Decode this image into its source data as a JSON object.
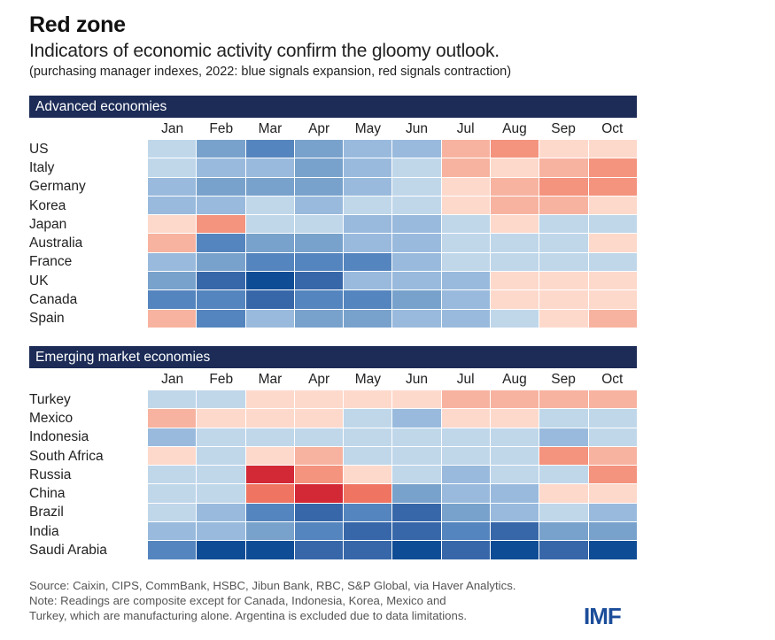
{
  "chart_data": {
    "type": "heatmap",
    "title": "Red zone",
    "subtitle": "Indicators of economic activity confirm the gloomy outlook.",
    "note": "(purchasing manager indexes, 2022: blue signals expansion, red signals contraction)",
    "scale": {
      "description": "Ordinal shading levels: negative = contraction (red), positive = expansion (blue)",
      "colors": {
        "-4": "#d32836",
        "-3": "#f07462",
        "-2": "#f4937e",
        "-1": "#f7b3a0",
        "0": "#fdd9cc",
        "1": "#c0d7ea",
        "2": "#99badd",
        "3": "#78a2cc",
        "4": "#5585be",
        "5": "#3767a9",
        "6": "#0f4c96"
      }
    },
    "months": [
      "Jan",
      "Feb",
      "Mar",
      "Apr",
      "May",
      "Jun",
      "Jul",
      "Aug",
      "Sep",
      "Oct"
    ],
    "panels": [
      {
        "name": "Advanced economies",
        "rows": [
          {
            "country": "US",
            "values": [
              1,
              3,
              4,
              3,
              2,
              2,
              -1,
              -2,
              0,
              0
            ]
          },
          {
            "country": "Italy",
            "values": [
              1,
              2,
              2,
              3,
              2,
              1,
              -1,
              0,
              -1,
              -2
            ]
          },
          {
            "country": "Germany",
            "values": [
              2,
              3,
              3,
              3,
              2,
              1,
              0,
              -1,
              -2,
              -2
            ]
          },
          {
            "country": "Korea",
            "values": [
              2,
              2,
              1,
              2,
              1,
              1,
              0,
              -1,
              -1,
              0
            ]
          },
          {
            "country": "Japan",
            "values": [
              0,
              -2,
              1,
              1,
              2,
              2,
              1,
              0,
              1,
              1
            ]
          },
          {
            "country": "Australia",
            "values": [
              -1,
              4,
              3,
              3,
              2,
              2,
              1,
              1,
              1,
              0
            ]
          },
          {
            "country": "France",
            "values": [
              2,
              3,
              4,
              4,
              4,
              2,
              1,
              1,
              1,
              1
            ]
          },
          {
            "country": "UK",
            "values": [
              3,
              5,
              6,
              5,
              2,
              2,
              2,
              0,
              0,
              0
            ]
          },
          {
            "country": "Canada",
            "values": [
              4,
              4,
              5,
              4,
              4,
              3,
              2,
              0,
              0,
              0
            ]
          },
          {
            "country": "Spain",
            "values": [
              -1,
              4,
              2,
              3,
              3,
              2,
              2,
              1,
              0,
              -1
            ]
          }
        ]
      },
      {
        "name": "Emerging market economies",
        "rows": [
          {
            "country": "Turkey",
            "values": [
              1,
              1,
              0,
              0,
              0,
              0,
              -1,
              -1,
              -1,
              -1
            ]
          },
          {
            "country": "Mexico",
            "values": [
              -1,
              0,
              0,
              0,
              1,
              2,
              0,
              0,
              1,
              1
            ]
          },
          {
            "country": "Indonesia",
            "values": [
              2,
              1,
              1,
              1,
              1,
              1,
              1,
              1,
              2,
              1
            ]
          },
          {
            "country": "South Africa",
            "values": [
              0,
              1,
              0,
              -1,
              1,
              1,
              1,
              1,
              -2,
              -1
            ]
          },
          {
            "country": "Russia",
            "values": [
              1,
              1,
              -4,
              -2,
              0,
              1,
              2,
              1,
              1,
              -2
            ]
          },
          {
            "country": "China",
            "values": [
              1,
              1,
              -3,
              -4,
              -3,
              3,
              2,
              2,
              0,
              0
            ]
          },
          {
            "country": "Brazil",
            "values": [
              1,
              2,
              4,
              5,
              4,
              5,
              3,
              2,
              1,
              2
            ]
          },
          {
            "country": "India",
            "values": [
              2,
              2,
              3,
              4,
              5,
              5,
              4,
              5,
              3,
              3
            ]
          },
          {
            "country": "Saudi Arabia",
            "values": [
              4,
              6,
              6,
              5,
              5,
              6,
              5,
              6,
              5,
              6
            ]
          }
        ]
      }
    ]
  },
  "footer": {
    "source": "Source: Caixin, CIPS, CommBank, HSBC, Jibun Bank, RBC, S&P Global, via Haver Analytics.",
    "note_line1": "Note: Readings are composite except for Canada, Indonesia, Korea, Mexico and",
    "note_line2": "Turkey, which are manufacturing alone. Argentina is excluded due to data limitations."
  },
  "logo": "IMF",
  "colors": {
    "section_bar": "#1c2c57",
    "logo": "#1c4d9a"
  }
}
